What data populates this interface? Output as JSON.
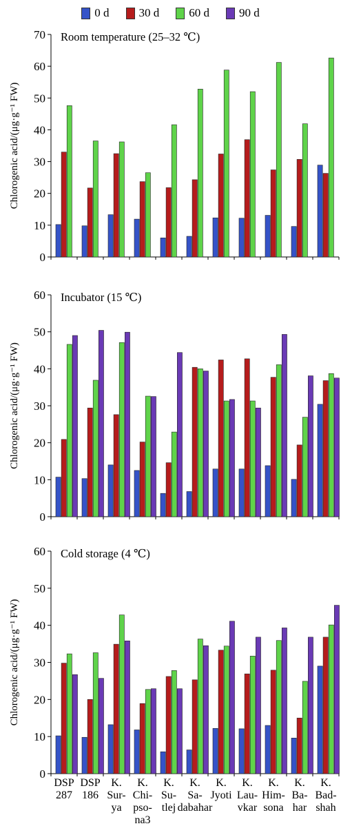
{
  "chart_data": {
    "type": "bar",
    "legend": {
      "placement": "top-center",
      "series": [
        {
          "name": "0 d",
          "color": "#3553c8"
        },
        {
          "name": "30 d",
          "color": "#b51c1c"
        },
        {
          "name": "60 d",
          "color": "#5fd34a"
        },
        {
          "name": "90 d",
          "color": "#6a3ab5"
        }
      ]
    },
    "categories": [
      [
        "DSP",
        "287"
      ],
      [
        "DSP",
        "186"
      ],
      [
        "K.",
        "Sur-",
        "ya"
      ],
      [
        "K.",
        "Chi-",
        "pso-",
        "na3"
      ],
      [
        "K.",
        "Su-",
        "tlej"
      ],
      [
        "K.",
        "Sa-",
        "dabahar"
      ],
      [
        "K.",
        "Jyoti"
      ],
      [
        "K.",
        "Lau-",
        "vkar"
      ],
      [
        "K.",
        "Him-",
        "sona"
      ],
      [
        "K.",
        "Ba-",
        "har"
      ],
      [
        "K.",
        "Bad-",
        "shah"
      ]
    ],
    "ylabel": "Chlorogenic acid/(μg·g⁻¹ FW)",
    "panels": [
      {
        "title": "Room temperature (25–32 ℃)",
        "ylim": [
          0,
          70
        ],
        "yticks": [
          0,
          10,
          20,
          30,
          40,
          50,
          60,
          70
        ],
        "series": [
          {
            "name": "0 d",
            "values": [
              10.2,
              9.8,
              13.3,
              11.9,
              6.0,
              6.5,
              12.3,
              12.2,
              13.1,
              9.6,
              28.9
            ]
          },
          {
            "name": "30 d",
            "values": [
              33.0,
              21.7,
              32.5,
              23.7,
              21.8,
              24.3,
              32.4,
              36.9,
              27.4,
              30.7,
              26.3
            ]
          },
          {
            "name": "60 d",
            "values": [
              47.6,
              36.5,
              36.2,
              26.5,
              41.6,
              52.8,
              58.8,
              52.0,
              61.2,
              41.9,
              62.6
            ]
          },
          {
            "name": "90 d",
            "values": [
              null,
              null,
              null,
              null,
              null,
              null,
              null,
              null,
              null,
              null,
              null
            ]
          }
        ]
      },
      {
        "title": "Incubator (15 ℃)",
        "ylim": [
          0,
          60
        ],
        "yticks": [
          0,
          10,
          20,
          30,
          40,
          50,
          60
        ],
        "series": [
          {
            "name": "0 d",
            "values": [
              10.7,
              10.3,
              14.0,
              12.5,
              6.3,
              6.8,
              12.9,
              12.9,
              13.8,
              10.1,
              30.4
            ]
          },
          {
            "name": "30 d",
            "values": [
              20.9,
              29.4,
              27.6,
              20.2,
              14.6,
              40.4,
              42.4,
              42.7,
              37.7,
              19.4,
              36.8
            ]
          },
          {
            "name": "60 d",
            "values": [
              46.6,
              36.9,
              47.1,
              32.6,
              22.9,
              40.0,
              31.3,
              31.3,
              41.1,
              26.9,
              38.7
            ]
          },
          {
            "name": "90 d",
            "values": [
              49.0,
              50.4,
              49.9,
              32.5,
              44.4,
              39.4,
              31.7,
              29.4,
              49.3,
              38.1,
              37.5
            ]
          }
        ]
      },
      {
        "title": "Cold storage (4 ℃)",
        "ylim": [
          0,
          60
        ],
        "yticks": [
          0,
          10,
          20,
          30,
          40,
          50,
          60
        ],
        "series": [
          {
            "name": "0 d",
            "values": [
              10.2,
              9.8,
              13.2,
              11.8,
              5.9,
              6.4,
              12.2,
              12.1,
              13.0,
              9.6,
              29.0
            ]
          },
          {
            "name": "30 d",
            "values": [
              29.8,
              20.0,
              34.9,
              18.9,
              26.2,
              25.3,
              33.3,
              26.9,
              27.9,
              15.0,
              36.8
            ]
          },
          {
            "name": "60 d",
            "values": [
              32.3,
              32.6,
              42.8,
              22.7,
              27.8,
              36.3,
              34.4,
              31.7,
              35.9,
              24.9,
              40.1
            ]
          },
          {
            "name": "90 d",
            "values": [
              26.7,
              25.7,
              35.8,
              22.9,
              22.9,
              34.5,
              41.1,
              36.8,
              39.3,
              36.8,
              45.4
            ]
          }
        ]
      }
    ],
    "grid": false
  }
}
